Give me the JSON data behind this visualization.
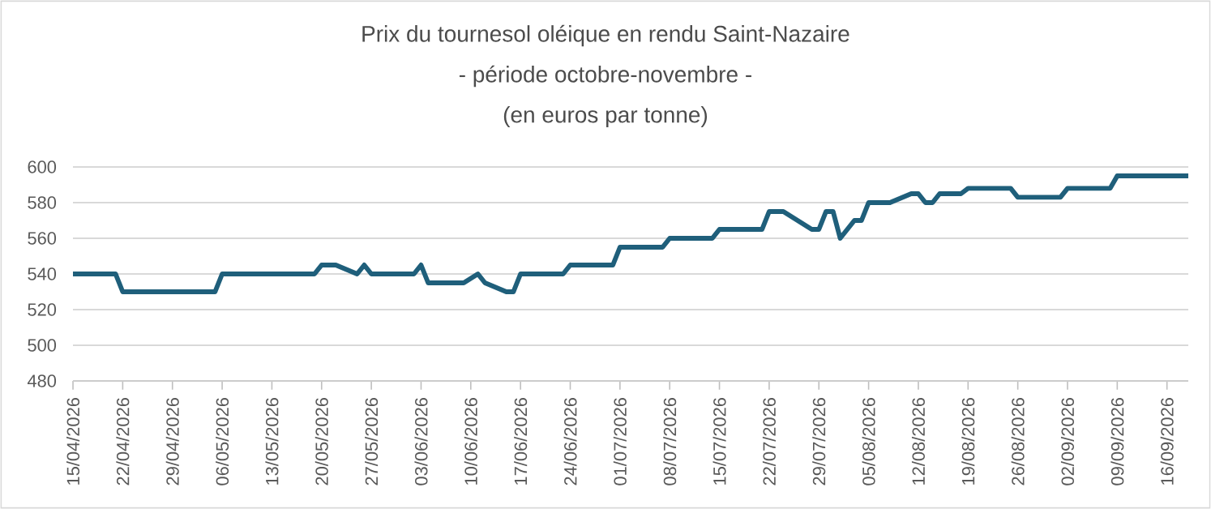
{
  "chart_data": {
    "type": "line",
    "title": "Prix du tournesol oléique en rendu Saint-Nazaire",
    "subtitle": "- période octobre-novembre -",
    "annotations": [
      "(en euros par tonne)"
    ],
    "x": [
      "2026-04-15",
      "2026-04-21",
      "2026-04-22",
      "2026-05-05",
      "2026-05-06",
      "2026-05-19",
      "2026-05-20",
      "2026-05-22",
      "2026-05-25",
      "2026-05-26",
      "2026-05-27",
      "2026-06-02",
      "2026-06-03",
      "2026-06-04",
      "2026-06-09",
      "2026-06-11",
      "2026-06-12",
      "2026-06-15",
      "2026-06-16",
      "2026-06-17",
      "2026-06-23",
      "2026-06-24",
      "2026-06-30",
      "2026-07-01",
      "2026-07-07",
      "2026-07-08",
      "2026-07-14",
      "2026-07-15",
      "2026-07-21",
      "2026-07-22",
      "2026-07-24",
      "2026-07-28",
      "2026-07-29",
      "2026-07-30",
      "2026-07-31",
      "2026-08-01",
      "2026-08-03",
      "2026-08-04",
      "2026-08-05",
      "2026-08-08",
      "2026-08-11",
      "2026-08-12",
      "2026-08-13",
      "2026-08-14",
      "2026-08-15",
      "2026-08-18",
      "2026-08-19",
      "2026-08-25",
      "2026-08-26",
      "2026-09-01",
      "2026-09-02",
      "2026-09-08",
      "2026-09-09",
      "2026-09-19"
    ],
    "series": [
      {
        "color": "#1f5f7b",
        "values": [
          540,
          540,
          530,
          530,
          540,
          540,
          545,
          545,
          540,
          545,
          540,
          540,
          545,
          535,
          535,
          540,
          535,
          530,
          530,
          540,
          540,
          545,
          545,
          555,
          555,
          560,
          560,
          565,
          565,
          575,
          575,
          565,
          565,
          575,
          575,
          560,
          570,
          570,
          580,
          580,
          585,
          585,
          580,
          580,
          585,
          585,
          588,
          588,
          583,
          583,
          588,
          588,
          595,
          595
        ]
      }
    ],
    "xlim": [
      "2026-04-15",
      "2026-09-19"
    ],
    "xticks": [
      {
        "value": "2026-04-15",
        "label": "15/04/2026"
      },
      {
        "value": "2026-04-22",
        "label": "22/04/2026"
      },
      {
        "value": "2026-04-29",
        "label": "29/04/2026"
      },
      {
        "value": "2026-05-06",
        "label": "06/05/2026"
      },
      {
        "value": "2026-05-13",
        "label": "13/05/2026"
      },
      {
        "value": "2026-05-20",
        "label": "20/05/2026"
      },
      {
        "value": "2026-05-27",
        "label": "27/05/2026"
      },
      {
        "value": "2026-06-03",
        "label": "03/06/2026"
      },
      {
        "value": "2026-06-10",
        "label": "10/06/2026"
      },
      {
        "value": "2026-06-17",
        "label": "17/06/2026"
      },
      {
        "value": "2026-06-24",
        "label": "24/06/2026"
      },
      {
        "value": "2026-07-01",
        "label": "01/07/2026"
      },
      {
        "value": "2026-07-08",
        "label": "08/07/2026"
      },
      {
        "value": "2026-07-15",
        "label": "15/07/2026"
      },
      {
        "value": "2026-07-22",
        "label": "22/07/2026"
      },
      {
        "value": "2026-07-29",
        "label": "29/07/2026"
      },
      {
        "value": "2026-08-05",
        "label": "05/08/2026"
      },
      {
        "value": "2026-08-12",
        "label": "12/08/2026"
      },
      {
        "value": "2026-08-19",
        "label": "19/08/2026"
      },
      {
        "value": "2026-08-26",
        "label": "26/08/2026"
      },
      {
        "value": "2026-09-02",
        "label": "02/09/2026"
      },
      {
        "value": "2026-09-09",
        "label": "09/09/2026"
      },
      {
        "value": "2026-09-16",
        "label": "16/09/2026"
      }
    ],
    "ylim": [
      480,
      600
    ],
    "yticks": [
      480,
      500,
      520,
      540,
      560,
      580,
      600
    ],
    "grid": "y",
    "marker": "none",
    "line_style": "solid"
  }
}
